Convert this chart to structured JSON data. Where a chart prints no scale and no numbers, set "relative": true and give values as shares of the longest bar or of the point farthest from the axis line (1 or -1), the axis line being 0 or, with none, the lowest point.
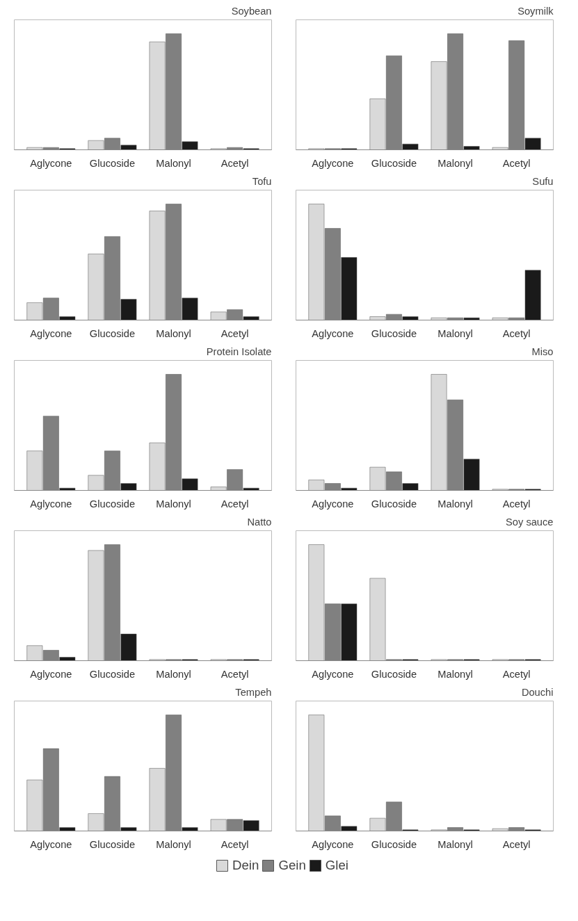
{
  "chart_data": [
    {
      "type": "bar",
      "title": "Soybean",
      "relative": true,
      "categories": [
        "Aglycone",
        "Glucoside",
        "Malonyl",
        "Acetyl"
      ],
      "series": [
        {
          "color": "#d9d9d9",
          "values": [
            0.02,
            0.08,
            0.93,
            0.01
          ]
        },
        {
          "color": "#808080",
          "values": [
            0.02,
            0.1,
            1,
            0.02
          ]
        },
        {
          "color": "#1a1a1a",
          "values": [
            0.01,
            0.04,
            0.07,
            0.01
          ]
        }
      ]
    },
    {
      "type": "bar",
      "title": "Soymilk",
      "relative": true,
      "categories": [
        "Aglycone",
        "Glucoside",
        "Malonyl",
        "Acetyl"
      ],
      "series": [
        {
          "color": "#d9d9d9",
          "values": [
            0.01,
            0.44,
            0.76,
            0.02
          ]
        },
        {
          "color": "#808080",
          "values": [
            0.01,
            0.81,
            1,
            0.94
          ]
        },
        {
          "color": "#1a1a1a",
          "values": [
            0.01,
            0.05,
            0.03,
            0.1
          ]
        }
      ]
    },
    {
      "type": "bar",
      "title": "Tofu",
      "relative": true,
      "categories": [
        "Aglycone",
        "Glucoside",
        "Malonyl",
        "Acetyl"
      ],
      "series": [
        {
          "color": "#d9d9d9",
          "values": [
            0.15,
            0.57,
            0.94,
            0.07
          ]
        },
        {
          "color": "#808080",
          "values": [
            0.19,
            0.72,
            1,
            0.09
          ]
        },
        {
          "color": "#1a1a1a",
          "values": [
            0.03,
            0.18,
            0.19,
            0.03
          ]
        }
      ]
    },
    {
      "type": "bar",
      "title": "Sufu",
      "relative": true,
      "categories": [
        "Aglycone",
        "Glucoside",
        "Malonyl",
        "Acetyl"
      ],
      "series": [
        {
          "color": "#d9d9d9",
          "values": [
            1,
            0.03,
            0.02,
            0.02
          ]
        },
        {
          "color": "#808080",
          "values": [
            0.79,
            0.05,
            0.02,
            0.02
          ]
        },
        {
          "color": "#1a1a1a",
          "values": [
            0.54,
            0.03,
            0.02,
            0.43
          ]
        }
      ]
    },
    {
      "type": "bar",
      "title": "Protein Isolate",
      "relative": true,
      "categories": [
        "Aglycone",
        "Glucoside",
        "Malonyl",
        "Acetyl"
      ],
      "series": [
        {
          "color": "#d9d9d9",
          "values": [
            0.34,
            0.13,
            0.41,
            0.03
          ]
        },
        {
          "color": "#808080",
          "values": [
            0.64,
            0.34,
            1,
            0.18
          ]
        },
        {
          "color": "#1a1a1a",
          "values": [
            0.02,
            0.06,
            0.1,
            0.02
          ]
        }
      ]
    },
    {
      "type": "bar",
      "title": "Miso",
      "relative": true,
      "categories": [
        "Aglycone",
        "Glucoside",
        "Malonyl",
        "Acetyl"
      ],
      "series": [
        {
          "color": "#d9d9d9",
          "values": [
            0.09,
            0.2,
            1,
            0.01
          ]
        },
        {
          "color": "#808080",
          "values": [
            0.06,
            0.16,
            0.78,
            0.01
          ]
        },
        {
          "color": "#1a1a1a",
          "values": [
            0.02,
            0.06,
            0.27,
            0.01
          ]
        }
      ]
    },
    {
      "type": "bar",
      "title": "Natto",
      "relative": true,
      "categories": [
        "Aglycone",
        "Glucoside",
        "Malonyl",
        "Acetyl"
      ],
      "series": [
        {
          "color": "#d9d9d9",
          "values": [
            0.13,
            0.95,
            0.01,
            0.01
          ]
        },
        {
          "color": "#808080",
          "values": [
            0.09,
            1,
            0.01,
            0.01
          ]
        },
        {
          "color": "#1a1a1a",
          "values": [
            0.03,
            0.23,
            0.01,
            0.01
          ]
        }
      ]
    },
    {
      "type": "bar",
      "title": "Soy sauce",
      "relative": true,
      "categories": [
        "Aglycone",
        "Glucoside",
        "Malonyl",
        "Acetyl"
      ],
      "series": [
        {
          "color": "#d9d9d9",
          "values": [
            1,
            0.71,
            0.01,
            0.01
          ]
        },
        {
          "color": "#808080",
          "values": [
            0.49,
            0.01,
            0.01,
            0.01
          ]
        },
        {
          "color": "#1a1a1a",
          "values": [
            0.49,
            0.01,
            0.01,
            0.01
          ]
        }
      ]
    },
    {
      "type": "bar",
      "title": "Tempeh",
      "relative": true,
      "categories": [
        "Aglycone",
        "Glucoside",
        "Malonyl",
        "Acetyl"
      ],
      "series": [
        {
          "color": "#d9d9d9",
          "values": [
            0.44,
            0.15,
            0.54,
            0.1
          ]
        },
        {
          "color": "#808080",
          "values": [
            0.71,
            0.47,
            1,
            0.1
          ]
        },
        {
          "color": "#1a1a1a",
          "values": [
            0.03,
            0.03,
            0.03,
            0.09
          ]
        }
      ]
    },
    {
      "type": "bar",
      "title": "Douchi",
      "relative": true,
      "legend": "bottom",
      "categories": [
        "Aglycone",
        "Glucoside",
        "Malonyl",
        "Acetyl"
      ],
      "series": [
        {
          "name": "Dein",
          "color": "#d9d9d9",
          "values": [
            1,
            0.11,
            0.01,
            0.02
          ]
        },
        {
          "name": "Gein",
          "color": "#808080",
          "values": [
            0.13,
            0.25,
            0.03,
            0.03
          ]
        },
        {
          "name": "Glei",
          "color": "#1a1a1a",
          "values": [
            0.04,
            0.01,
            0.01,
            0.01
          ]
        }
      ]
    }
  ]
}
